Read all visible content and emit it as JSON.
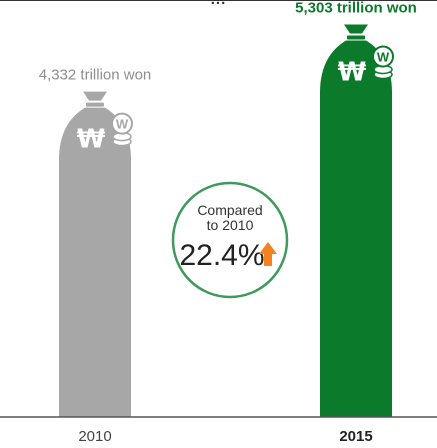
{
  "top_title": "...",
  "chart_data": {
    "type": "bar",
    "categories": [
      "2010",
      "2015"
    ],
    "values": [
      4332,
      5303
    ],
    "value_labels": [
      "4,332 trillion won",
      "5,303 trillion won"
    ],
    "unit": "trillion won",
    "title": "",
    "xlabel": "",
    "ylabel": "",
    "ylim": [
      0,
      5600
    ],
    "grid": false,
    "legend": "none",
    "colors": [
      "#a7a7a7",
      "#0b7a2a"
    ],
    "label_colors": [
      "#8e8e8e",
      "#0b7a2a"
    ],
    "bar_icon": "money-bag-icon",
    "coin_icon": "won-coin-icon",
    "currency_symbol": "₩",
    "coin_symbol": "W",
    "annotation": {
      "line1": "Compared",
      "line2": "to 2010",
      "value": "22.4%",
      "arrow_icon": "up-arrow-icon",
      "circle_color": "#3f9a5c",
      "arrow_color": "#f5821f"
    }
  }
}
